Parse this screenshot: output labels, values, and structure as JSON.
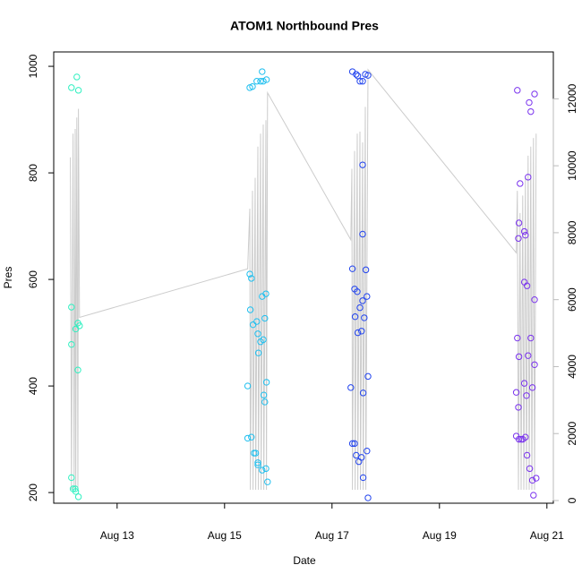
{
  "chart_data": {
    "type": "scatter",
    "title": "ATOM1 Northbound Pres",
    "xlabel": "Date",
    "ylabel": "Pres",
    "xlim": [
      11.82,
      21.12
    ],
    "xticks": [
      {
        "value": 13,
        "label": "Aug 13"
      },
      {
        "value": 15,
        "label": "Aug 15"
      },
      {
        "value": 17,
        "label": "Aug 17"
      },
      {
        "value": 19,
        "label": "Aug 19"
      },
      {
        "value": 21,
        "label": "Aug 21"
      }
    ],
    "ylim": [
      180,
      1027
    ],
    "yticks": [
      200,
      400,
      600,
      800,
      1000
    ],
    "y2lim": [
      -80,
      13400
    ],
    "y2ticks": [
      0,
      2000,
      4000,
      6000,
      8000,
      10000,
      12000
    ],
    "y2color": "#bbbbbb",
    "series": [
      {
        "type": "line",
        "axis": "y2",
        "color": "#cccccc",
        "x": [
          12.13,
          12.15,
          12.18,
          12.2,
          12.22,
          12.23,
          12.25,
          12.27,
          12.28,
          12.3,
          15.43,
          15.47,
          15.48,
          15.52,
          15.53,
          15.57,
          15.58,
          15.62,
          15.63,
          15.67,
          15.68,
          15.72,
          15.73,
          15.77,
          15.78,
          15.8,
          17.35,
          17.37,
          17.38,
          17.42,
          17.43,
          17.47,
          17.48,
          17.52,
          17.53,
          17.57,
          17.58,
          17.62,
          17.63,
          17.67,
          20.43,
          20.45,
          20.47,
          20.5,
          20.52,
          20.55,
          20.57,
          20.6,
          20.62,
          20.65,
          20.67,
          20.7,
          20.72,
          20.75,
          20.77,
          20.8
        ],
        "values": [
          10250,
          320,
          10960,
          320,
          11100,
          320,
          11440,
          320,
          11700,
          5470,
          6920,
          8720,
          320,
          9250,
          320,
          9640,
          320,
          10570,
          320,
          10960,
          320,
          11230,
          320,
          11360,
          320,
          12180,
          7790,
          9910,
          320,
          10440,
          320,
          10960,
          320,
          11020,
          320,
          10700,
          320,
          11760,
          320,
          12870,
          7400,
          9250,
          320,
          8590,
          320,
          9110,
          320,
          9640,
          320,
          10300,
          320,
          10570,
          320,
          10830,
          320,
          10960
        ]
      },
      {
        "color": "#2ef0c0",
        "x": [
          12.15,
          12.25,
          12.28,
          12.15,
          12.15,
          12.23,
          12.27,
          12.3,
          12.27,
          12.15,
          12.18,
          12.22,
          12.23,
          12.28
        ],
        "values": [
          960,
          980,
          955,
          548,
          478,
          507,
          518,
          513,
          430,
          228,
          207,
          207,
          202,
          192
        ]
      },
      {
        "color": "#1fbfef",
        "x": [
          15.47,
          15.52,
          15.6,
          15.67,
          15.72,
          15.78,
          15.7,
          15.47,
          15.5,
          15.48,
          15.53,
          15.6,
          15.62,
          15.63,
          15.67,
          15.72,
          15.7,
          15.77,
          15.75,
          15.78,
          15.43,
          15.73,
          15.75,
          15.43,
          15.5,
          15.55,
          15.58,
          15.62,
          15.62,
          15.7,
          15.77,
          15.8
        ],
        "values": [
          960,
          962,
          972,
          972,
          972,
          975,
          990,
          610,
          602,
          543,
          515,
          521,
          498,
          462,
          483,
          487,
          568,
          573,
          527,
          407,
          400,
          383,
          370,
          302,
          304,
          274,
          274,
          256,
          252,
          242,
          245,
          220
        ]
      },
      {
        "color": "#2244ee",
        "x": [
          17.38,
          17.45,
          17.48,
          17.52,
          17.57,
          17.62,
          17.67,
          17.57,
          17.57,
          17.38,
          17.63,
          17.42,
          17.47,
          17.52,
          17.57,
          17.65,
          17.43,
          17.6,
          17.48,
          17.55,
          17.67,
          17.35,
          17.58,
          17.38,
          17.42,
          17.45,
          17.5,
          17.55,
          17.65,
          17.58,
          17.67
        ],
        "values": [
          990,
          985,
          982,
          972,
          972,
          985,
          983,
          815,
          685,
          620,
          618,
          582,
          577,
          547,
          560,
          568,
          530,
          528,
          500,
          503,
          418,
          397,
          387,
          292,
          292,
          270,
          258,
          266,
          278,
          228,
          190
        ]
      },
      {
        "color": "#7a33ee",
        "x": [
          20.45,
          20.5,
          20.47,
          20.48,
          20.58,
          20.6,
          20.67,
          20.7,
          20.77,
          20.65,
          20.58,
          20.63,
          20.77,
          20.45,
          20.7,
          20.48,
          20.65,
          20.77,
          20.58,
          20.73,
          20.62,
          20.43,
          20.47,
          20.43,
          20.48,
          20.52,
          20.55,
          20.6,
          20.63,
          20.68,
          20.73,
          20.8,
          20.75
        ],
        "values": [
          955,
          780,
          677,
          706,
          690,
          683,
          932,
          915,
          948,
          792,
          595,
          588,
          562,
          490,
          490,
          455,
          457,
          440,
          405,
          397,
          382,
          388,
          360,
          306,
          300,
          300,
          300,
          304,
          270,
          245,
          223,
          227,
          195
        ]
      }
    ]
  }
}
